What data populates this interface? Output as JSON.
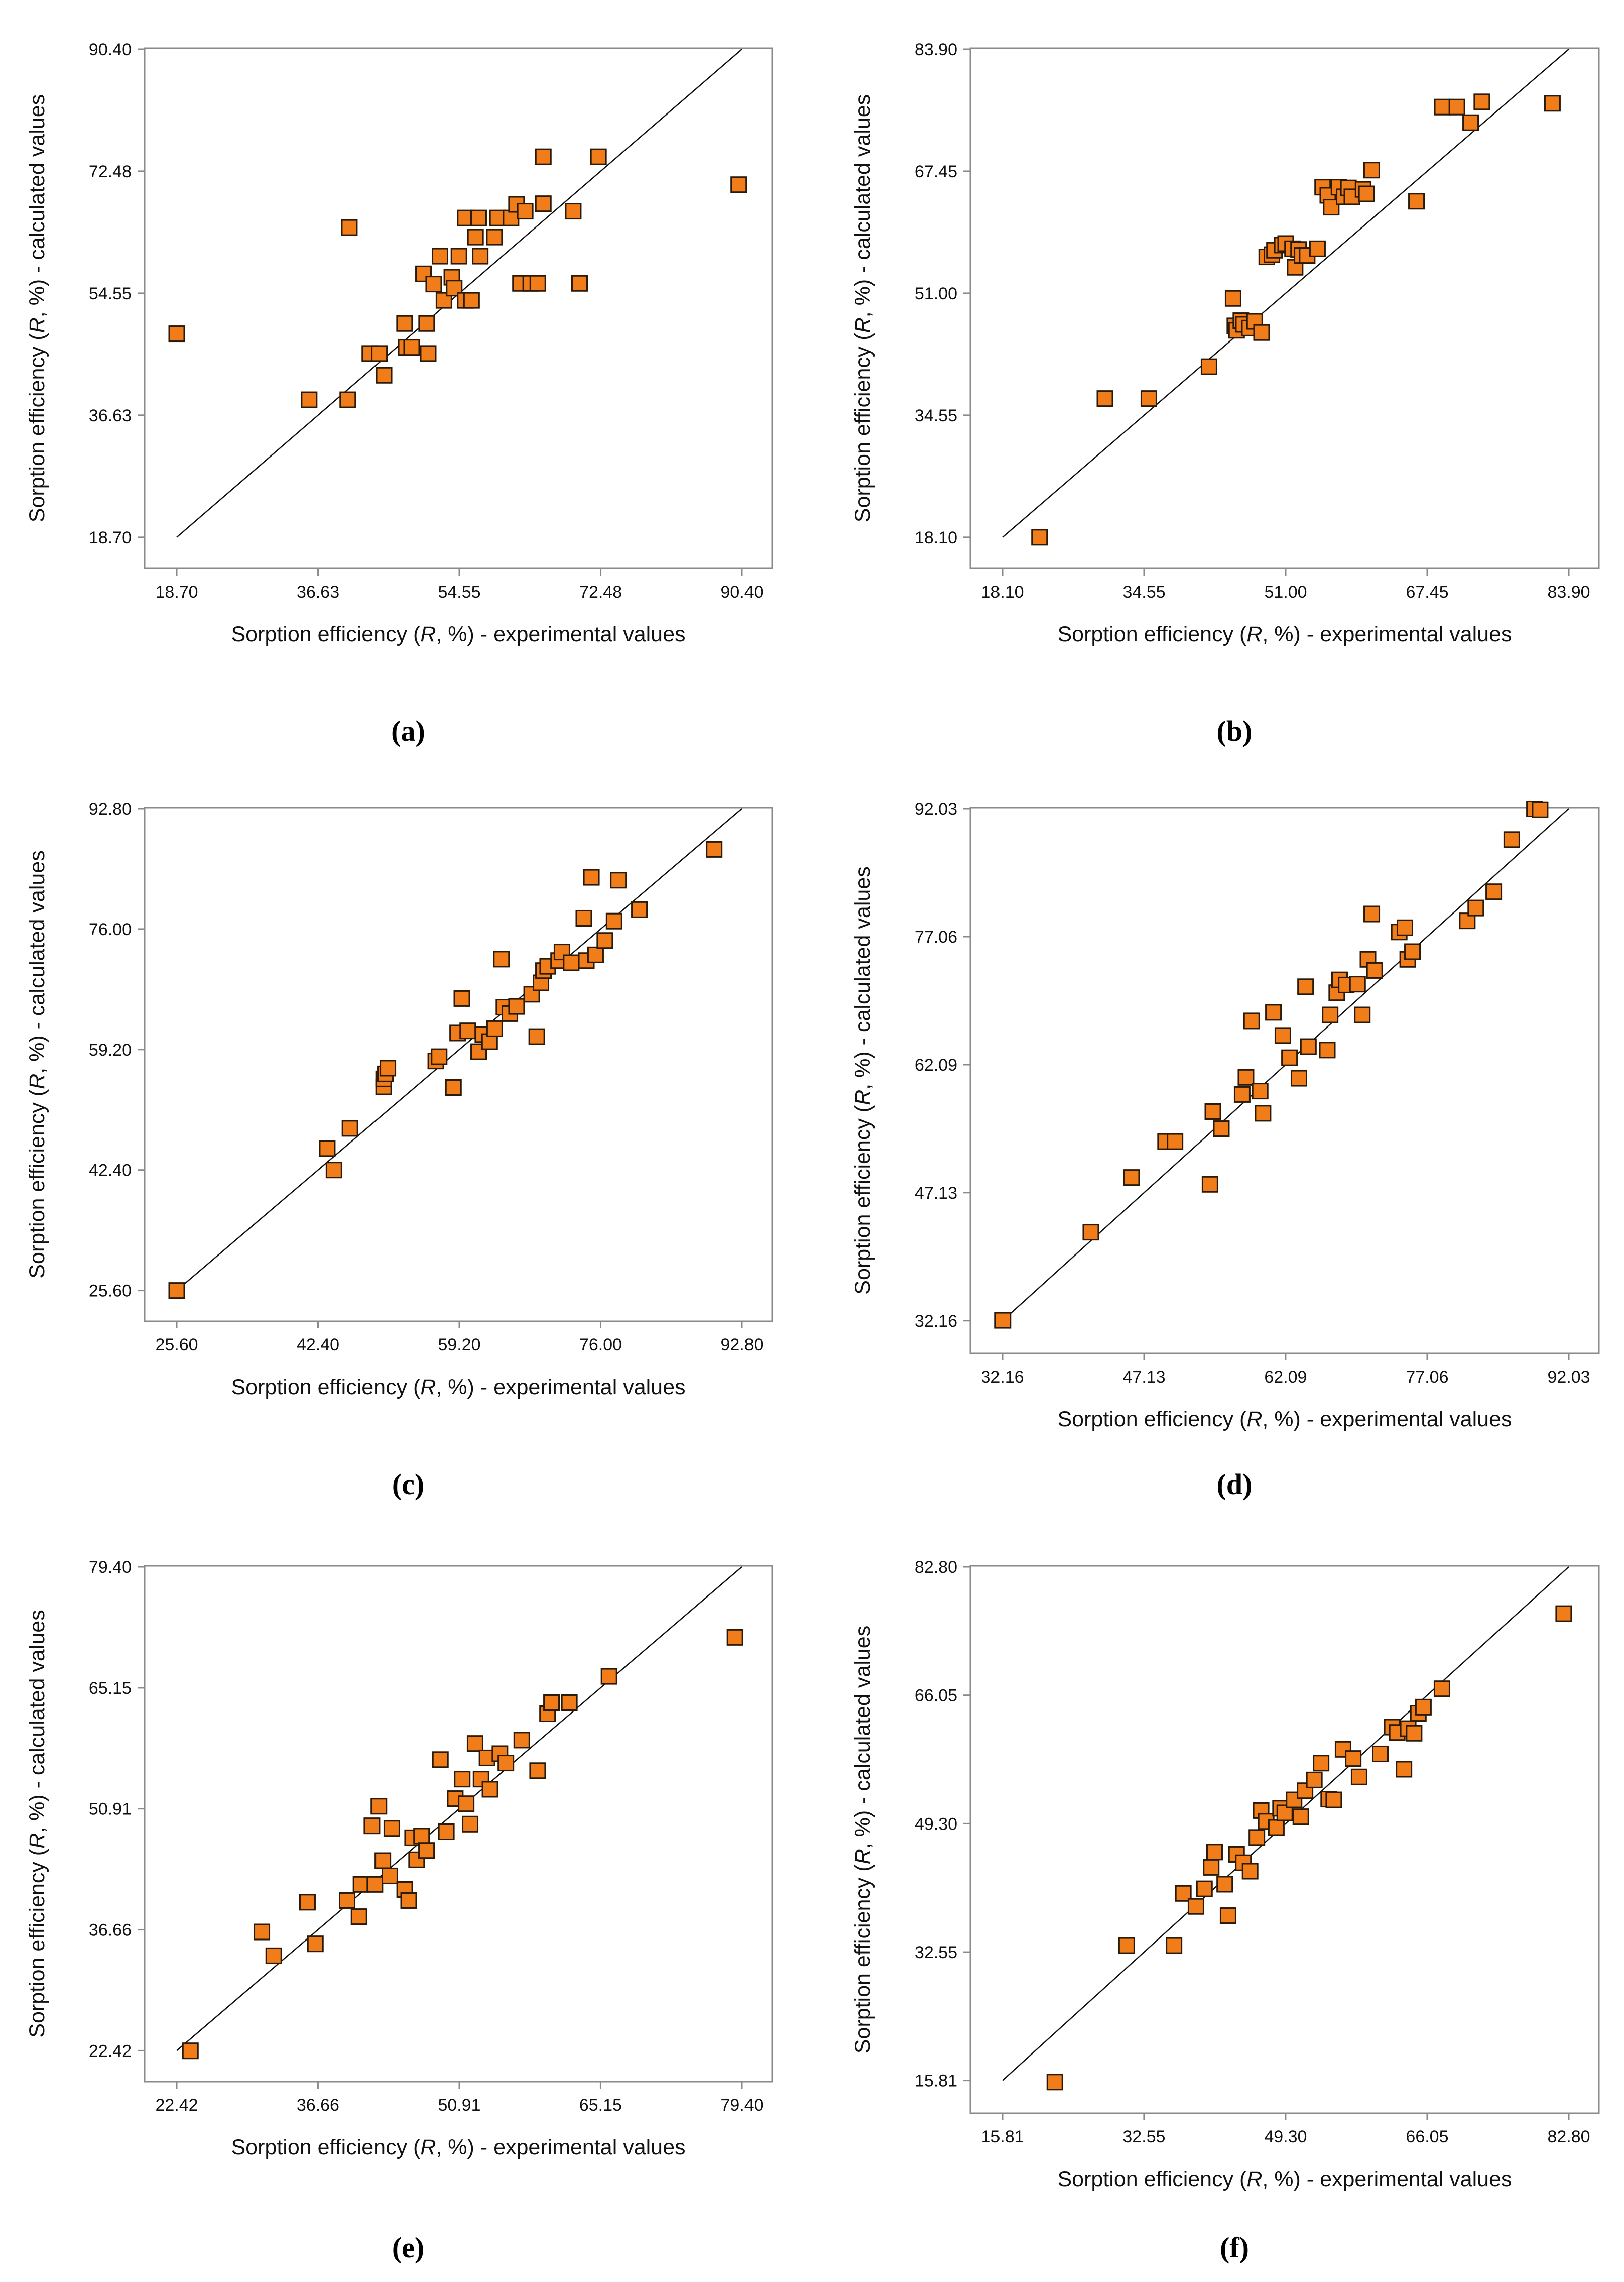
{
  "figure": {
    "panel_labels": [
      "(a)",
      "(b)",
      "(c)",
      "(d)",
      "(e)",
      "(f)"
    ]
  },
  "style": {
    "marker_fill": "#F07D1A",
    "marker_edge": "#2A1A08",
    "line_color": "#111111",
    "frame_color": "#8A8A8A"
  },
  "chart_data": [
    {
      "type": "scatter",
      "panel": "(a)",
      "xlabel_parts": [
        "Sorption efficiency (",
        "R",
        ", %) - experimental values"
      ],
      "ylabel_parts": [
        "Sorption efficiency (",
        "R",
        ", %) - calculated values"
      ],
      "xlim": [
        18.7,
        90.4
      ],
      "ylim": [
        18.7,
        90.4
      ],
      "ticks": [
        18.7,
        36.63,
        54.55,
        72.48,
        90.4
      ],
      "tick_labels": [
        "18.70",
        "36.63",
        "54.55",
        "72.48",
        "90.40"
      ],
      "fit_line": [
        [
          18.7,
          18.7
        ],
        [
          90.4,
          90.4
        ]
      ],
      "points": [
        [
          18.7,
          48.6
        ],
        [
          35.5,
          38.9
        ],
        [
          40.4,
          38.9
        ],
        [
          40.6,
          64.2
        ],
        [
          43.2,
          45.7
        ],
        [
          44.4,
          45.7
        ],
        [
          45.0,
          42.5
        ],
        [
          47.6,
          50.1
        ],
        [
          47.8,
          46.6
        ],
        [
          48.5,
          46.6
        ],
        [
          50.0,
          57.4
        ],
        [
          50.4,
          50.1
        ],
        [
          50.6,
          45.7
        ],
        [
          51.3,
          55.9
        ],
        [
          52.1,
          60.0
        ],
        [
          52.6,
          53.5
        ],
        [
          53.6,
          56.9
        ],
        [
          53.9,
          55.3
        ],
        [
          54.5,
          60.0
        ],
        [
          55.3,
          65.6
        ],
        [
          55.3,
          53.5
        ],
        [
          56.1,
          53.5
        ],
        [
          56.6,
          62.8
        ],
        [
          57.0,
          65.6
        ],
        [
          57.2,
          60.0
        ],
        [
          59.0,
          62.8
        ],
        [
          59.4,
          65.6
        ],
        [
          61.1,
          65.6
        ],
        [
          61.8,
          67.6
        ],
        [
          62.3,
          56.0
        ],
        [
          62.9,
          66.6
        ],
        [
          63.6,
          56.0
        ],
        [
          64.5,
          56.0
        ],
        [
          65.2,
          67.7
        ],
        [
          65.2,
          74.6
        ],
        [
          69.0,
          66.6
        ],
        [
          69.8,
          56.0
        ],
        [
          72.2,
          74.6
        ],
        [
          90.0,
          70.5
        ]
      ]
    },
    {
      "type": "scatter",
      "panel": "(b)",
      "xlabel_parts": [
        "Sorption efficiency (",
        "R",
        ", %) - experimental values"
      ],
      "ylabel_parts": [
        "Sorption efficiency (",
        "R",
        ", %) - calculated values"
      ],
      "xlim": [
        18.1,
        83.9
      ],
      "ylim": [
        18.1,
        83.9
      ],
      "ticks": [
        18.1,
        34.55,
        51.0,
        67.45,
        83.9
      ],
      "tick_labels": [
        "18.10",
        "34.55",
        "51.00",
        "67.45",
        "83.90"
      ],
      "fit_line": [
        [
          18.1,
          18.1
        ],
        [
          83.9,
          83.9
        ]
      ],
      "points": [
        [
          22.4,
          18.1
        ],
        [
          30.0,
          36.8
        ],
        [
          35.1,
          36.8
        ],
        [
          42.1,
          41.1
        ],
        [
          44.9,
          50.3
        ],
        [
          45.1,
          46.6
        ],
        [
          45.3,
          46.0
        ],
        [
          45.8,
          47.3
        ],
        [
          46.1,
          46.8
        ],
        [
          46.8,
          46.3
        ],
        [
          47.4,
          47.2
        ],
        [
          48.2,
          45.7
        ],
        [
          48.8,
          55.9
        ],
        [
          49.4,
          56.2
        ],
        [
          49.7,
          56.8
        ],
        [
          50.6,
          57.5
        ],
        [
          51.0,
          57.7
        ],
        [
          51.8,
          57.0
        ],
        [
          52.1,
          54.5
        ],
        [
          52.5,
          56.9
        ],
        [
          52.9,
          56.1
        ],
        [
          53.5,
          56.1
        ],
        [
          54.7,
          57.0
        ],
        [
          55.3,
          65.3
        ],
        [
          55.9,
          64.2
        ],
        [
          56.3,
          62.6
        ],
        [
          57.2,
          65.3
        ],
        [
          57.8,
          64.0
        ],
        [
          58.3,
          65.2
        ],
        [
          58.7,
          64.0
        ],
        [
          60.0,
          65.0
        ],
        [
          60.4,
          64.4
        ],
        [
          61.0,
          67.6
        ],
        [
          66.2,
          63.4
        ],
        [
          69.2,
          76.1
        ],
        [
          70.9,
          76.1
        ],
        [
          72.5,
          74.0
        ],
        [
          73.8,
          76.8
        ],
        [
          82.0,
          76.6
        ]
      ]
    },
    {
      "type": "scatter",
      "panel": "(c)",
      "xlabel_parts": [
        "Sorption efficiency (",
        "R",
        ", %) - experimental values"
      ],
      "ylabel_parts": [
        "Sorption efficiency (",
        "R",
        ", %) - calculated values"
      ],
      "xlim": [
        25.6,
        92.8
      ],
      "ylim": [
        25.6,
        92.8
      ],
      "ticks": [
        25.6,
        42.4,
        59.2,
        76.0,
        92.8
      ],
      "tick_labels": [
        "25.60",
        "42.40",
        "59.20",
        "76.00",
        "92.80"
      ],
      "fit_line": [
        [
          25.6,
          25.6
        ],
        [
          92.8,
          92.8
        ]
      ],
      "points": [
        [
          25.6,
          25.6
        ],
        [
          43.5,
          45.4
        ],
        [
          44.3,
          42.4
        ],
        [
          46.2,
          48.2
        ],
        [
          50.2,
          54.0
        ],
        [
          50.2,
          55.1
        ],
        [
          50.4,
          55.8
        ],
        [
          50.7,
          56.6
        ],
        [
          56.4,
          57.6
        ],
        [
          56.8,
          58.2
        ],
        [
          58.5,
          53.9
        ],
        [
          59.0,
          61.5
        ],
        [
          59.5,
          66.3
        ],
        [
          60.2,
          61.8
        ],
        [
          61.5,
          58.9
        ],
        [
          62.0,
          61.3
        ],
        [
          62.8,
          60.3
        ],
        [
          63.4,
          62.1
        ],
        [
          64.2,
          71.8
        ],
        [
          64.5,
          65.1
        ],
        [
          65.2,
          64.2
        ],
        [
          66.0,
          65.2
        ],
        [
          67.8,
          66.9
        ],
        [
          68.4,
          61.0
        ],
        [
          68.9,
          68.5
        ],
        [
          69.2,
          70.2
        ],
        [
          69.7,
          70.8
        ],
        [
          71.0,
          71.6
        ],
        [
          71.4,
          72.8
        ],
        [
          72.5,
          71.3
        ],
        [
          74.0,
          77.5
        ],
        [
          74.3,
          71.6
        ],
        [
          74.9,
          83.2
        ],
        [
          75.4,
          72.4
        ],
        [
          76.5,
          74.4
        ],
        [
          77.6,
          77.1
        ],
        [
          78.1,
          82.8
        ],
        [
          80.6,
          78.7
        ],
        [
          89.5,
          87.1
        ]
      ]
    },
    {
      "type": "scatter",
      "panel": "(d)",
      "xlabel_parts": [
        "Sorption efficiency (",
        "R",
        ", %) - experimental values"
      ],
      "ylabel_parts": [
        "Sorption efficiency (",
        "R",
        ", %) - calculated values"
      ],
      "xlim": [
        32.16,
        92.03
      ],
      "ylim": [
        32.16,
        92.03
      ],
      "ticks": [
        32.16,
        47.13,
        62.09,
        77.06,
        92.03
      ],
      "tick_labels": [
        "32.16",
        "47.13",
        "62.09",
        "77.06",
        "92.03"
      ],
      "fit_line": [
        [
          32.16,
          32.16
        ],
        [
          92.03,
          92.03
        ]
      ],
      "points": [
        [
          32.2,
          32.2
        ],
        [
          41.5,
          42.5
        ],
        [
          45.8,
          48.9
        ],
        [
          49.4,
          53.1
        ],
        [
          50.4,
          53.1
        ],
        [
          54.1,
          48.1
        ],
        [
          54.4,
          56.6
        ],
        [
          55.3,
          54.6
        ],
        [
          57.5,
          58.6
        ],
        [
          57.9,
          60.6
        ],
        [
          58.5,
          67.2
        ],
        [
          59.4,
          59.0
        ],
        [
          59.7,
          56.4
        ],
        [
          60.8,
          68.2
        ],
        [
          61.8,
          65.5
        ],
        [
          62.5,
          62.9
        ],
        [
          63.5,
          60.5
        ],
        [
          64.2,
          71.2
        ],
        [
          64.5,
          64.2
        ],
        [
          66.5,
          63.8
        ],
        [
          66.8,
          67.9
        ],
        [
          67.5,
          70.5
        ],
        [
          67.8,
          72.0
        ],
        [
          68.5,
          71.4
        ],
        [
          69.7,
          71.5
        ],
        [
          70.2,
          67.9
        ],
        [
          70.8,
          74.4
        ],
        [
          71.2,
          79.7
        ],
        [
          71.5,
          73.1
        ],
        [
          74.1,
          77.6
        ],
        [
          74.7,
          78.1
        ],
        [
          75.0,
          74.4
        ],
        [
          75.5,
          75.3
        ],
        [
          81.3,
          78.9
        ],
        [
          82.2,
          80.4
        ],
        [
          84.1,
          82.3
        ],
        [
          86.0,
          88.4
        ],
        [
          88.4,
          92.0
        ],
        [
          89.0,
          91.9
        ]
      ]
    },
    {
      "type": "scatter",
      "panel": "(e)",
      "xlabel_parts": [
        "Sorption efficiency (",
        "R",
        ", %) - experimental values"
      ],
      "ylabel_parts": [
        "Sorption efficiency (",
        "R",
        ", %) - calculated values"
      ],
      "xlim": [
        22.42,
        79.4
      ],
      "ylim": [
        22.42,
        79.4
      ],
      "ticks": [
        22.42,
        36.66,
        50.91,
        65.15,
        79.4
      ],
      "tick_labels": [
        "22.42",
        "36.66",
        "50.91",
        "65.15",
        "79.40"
      ],
      "fit_line": [
        [
          22.42,
          22.42
        ],
        [
          79.4,
          79.4
        ]
      ],
      "points": [
        [
          23.8,
          22.4
        ],
        [
          31.0,
          36.4
        ],
        [
          32.2,
          33.6
        ],
        [
          35.6,
          39.9
        ],
        [
          36.4,
          35.0
        ],
        [
          39.6,
          40.1
        ],
        [
          40.8,
          38.2
        ],
        [
          41.0,
          42.0
        ],
        [
          42.1,
          48.9
        ],
        [
          42.4,
          42.0
        ],
        [
          42.8,
          51.2
        ],
        [
          43.2,
          44.8
        ],
        [
          43.9,
          43.0
        ],
        [
          44.1,
          48.6
        ],
        [
          45.4,
          41.4
        ],
        [
          45.8,
          40.1
        ],
        [
          46.2,
          47.5
        ],
        [
          46.6,
          44.9
        ],
        [
          47.1,
          47.7
        ],
        [
          47.6,
          46.0
        ],
        [
          49.0,
          56.7
        ],
        [
          49.6,
          48.2
        ],
        [
          50.5,
          52.1
        ],
        [
          51.2,
          54.4
        ],
        [
          51.6,
          51.5
        ],
        [
          52.0,
          49.1
        ],
        [
          52.5,
          58.6
        ],
        [
          53.1,
          54.4
        ],
        [
          53.7,
          56.9
        ],
        [
          54.0,
          53.2
        ],
        [
          55.0,
          57.4
        ],
        [
          55.6,
          56.3
        ],
        [
          57.2,
          59.0
        ],
        [
          58.8,
          55.4
        ],
        [
          59.8,
          62.1
        ],
        [
          60.2,
          63.4
        ],
        [
          62.0,
          63.4
        ],
        [
          66.0,
          66.5
        ],
        [
          78.7,
          71.1
        ]
      ]
    },
    {
      "type": "scatter",
      "panel": "(f)",
      "xlabel_parts": [
        "Sorption efficiency (",
        "R",
        ", %) - experimental values"
      ],
      "ylabel_parts": [
        "Sorption efficiency (",
        "R",
        ", %) - calculated values"
      ],
      "xlim": [
        15.81,
        82.8
      ],
      "ylim": [
        15.81,
        82.8
      ],
      "ticks": [
        15.81,
        32.55,
        49.3,
        66.05,
        82.8
      ],
      "tick_labels": [
        "15.81",
        "32.55",
        "49.30",
        "66.05",
        "82.80"
      ],
      "fit_line": [
        [
          15.81,
          15.81
        ],
        [
          82.8,
          82.8
        ]
      ],
      "points": [
        [
          22.0,
          15.6
        ],
        [
          30.5,
          33.4
        ],
        [
          36.1,
          33.4
        ],
        [
          37.2,
          40.2
        ],
        [
          38.7,
          38.5
        ],
        [
          39.7,
          40.8
        ],
        [
          40.5,
          43.6
        ],
        [
          40.9,
          45.6
        ],
        [
          42.1,
          41.4
        ],
        [
          42.5,
          37.3
        ],
        [
          43.5,
          45.3
        ],
        [
          44.3,
          44.2
        ],
        [
          45.1,
          43.1
        ],
        [
          45.9,
          47.5
        ],
        [
          46.4,
          51.0
        ],
        [
          47.0,
          49.6
        ],
        [
          48.2,
          48.8
        ],
        [
          48.7,
          51.3
        ],
        [
          49.2,
          50.7
        ],
        [
          50.3,
          52.4
        ],
        [
          51.1,
          50.2
        ],
        [
          51.6,
          53.6
        ],
        [
          52.7,
          55.0
        ],
        [
          53.5,
          57.2
        ],
        [
          54.4,
          52.5
        ],
        [
          55.0,
          52.4
        ],
        [
          56.1,
          59.0
        ],
        [
          57.3,
          57.8
        ],
        [
          58.0,
          55.4
        ],
        [
          60.5,
          58.4
        ],
        [
          61.9,
          61.9
        ],
        [
          62.5,
          61.2
        ],
        [
          63.3,
          56.4
        ],
        [
          63.8,
          61.7
        ],
        [
          64.5,
          61.1
        ],
        [
          65.0,
          63.7
        ],
        [
          65.6,
          64.5
        ],
        [
          67.8,
          66.9
        ],
        [
          82.2,
          76.7
        ]
      ]
    }
  ]
}
